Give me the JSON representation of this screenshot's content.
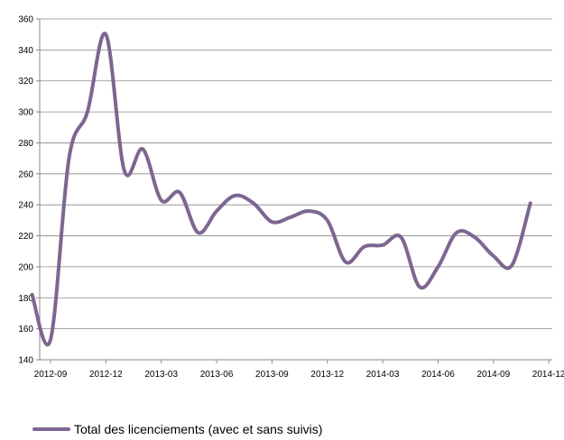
{
  "chart_data": {
    "type": "line",
    "title": "",
    "xlabel": "",
    "ylabel": "",
    "ylim": [
      140,
      360
    ],
    "y_ticks": [
      140,
      160,
      180,
      200,
      220,
      240,
      260,
      280,
      300,
      320,
      340,
      360
    ],
    "x_tick_labels": [
      "2012-09",
      "2012-12",
      "2013-03",
      "2013-06",
      "2013-09",
      "2013-12",
      "2014-03",
      "2014-06",
      "2014-09",
      "2014-12"
    ],
    "grid": "horizontal",
    "legend_position": "bottom-left",
    "colors": {
      "series": "#7d6690",
      "grid": "#888888",
      "axis": "#888888"
    },
    "series": [
      {
        "name": "Total des licenciements (avec et sans suivis)",
        "x": [
          "2012-08",
          "2012-09",
          "2012-10",
          "2012-11",
          "2012-12",
          "2013-01",
          "2013-02",
          "2013-03",
          "2013-04",
          "2013-05",
          "2013-06",
          "2013-07",
          "2013-08",
          "2013-09",
          "2013-10",
          "2013-11",
          "2013-12",
          "2014-01",
          "2014-02",
          "2014-03",
          "2014-04",
          "2014-05",
          "2014-06",
          "2014-07",
          "2014-08",
          "2014-09",
          "2014-10",
          "2014-11"
        ],
        "values": [
          182,
          153,
          270,
          300,
          350,
          262,
          276,
          243,
          248,
          222,
          236,
          246,
          241,
          229,
          232,
          236,
          230,
          203,
          213,
          214,
          219,
          187,
          200,
          222,
          219,
          207,
          201,
          241
        ]
      }
    ]
  }
}
